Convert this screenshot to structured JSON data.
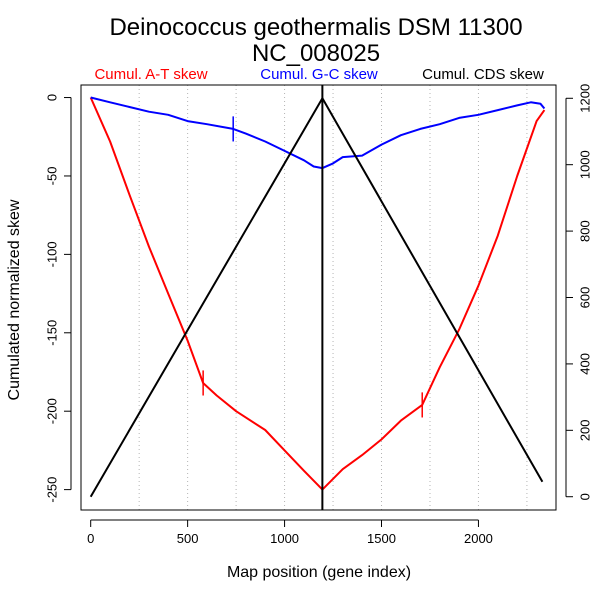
{
  "chart_data": {
    "type": "line",
    "title": "Deinococcus geothermalis DSM 11300",
    "subtitle": "NC_008025",
    "xlabel": "Map position (gene index)",
    "ylabel": "Cumulated normalized skew",
    "xlim": [
      -50,
      2400
    ],
    "ylim_left": [
      -263,
      8
    ],
    "ylim_right": [
      -40,
      1240
    ],
    "x_ticks": [
      "0",
      "500",
      "1000",
      "1500",
      "2000"
    ],
    "y_ticks_left": [
      "0",
      "-50",
      "-100",
      "-150",
      "-200",
      "-250"
    ],
    "y_ticks_right": [
      "0",
      "200",
      "400",
      "600",
      "800",
      "1000",
      "1200"
    ],
    "grid_x": [
      250,
      500,
      750,
      1000,
      1250,
      1500,
      1750,
      2000,
      2250
    ],
    "legend": [
      "Cumul. A-T skew",
      "Cumul. G-C skew",
      "Cumul. CDS skew"
    ],
    "colors": {
      "at": "#ff0000",
      "gc": "#0000ff",
      "cds": "#000000"
    },
    "series": [
      {
        "name": "Cumul. A-T skew",
        "axis": "left",
        "x": [
          0,
          100,
          200,
          300,
          400,
          500,
          580,
          650,
          750,
          900,
          1000,
          1100,
          1195,
          1300,
          1400,
          1500,
          1600,
          1710,
          1800,
          1900,
          2000,
          2100,
          2200,
          2300,
          2340
        ],
        "y": [
          0,
          -28,
          -62,
          -95,
          -125,
          -155,
          -182,
          -190,
          -200,
          -212,
          -225,
          -238,
          -250,
          -237,
          -228,
          -218,
          -206,
          -196,
          -172,
          -148,
          -120,
          -88,
          -50,
          -15,
          -8
        ]
      },
      {
        "name": "Cumul. G-C skew",
        "axis": "left",
        "x": [
          0,
          100,
          200,
          300,
          400,
          500,
          600,
          735,
          800,
          900,
          1000,
          1100,
          1150,
          1195,
          1250,
          1300,
          1400,
          1500,
          1600,
          1700,
          1800,
          1900,
          2000,
          2100,
          2200,
          2270,
          2320,
          2340
        ],
        "y": [
          0,
          -3,
          -6,
          -9,
          -11,
          -15,
          -17,
          -20,
          -23,
          -28,
          -34,
          -40,
          -44,
          -45,
          -42,
          -38,
          -37,
          -30,
          -24,
          -20,
          -17,
          -13,
          -11,
          -8,
          -5,
          -3,
          -4,
          -7
        ]
      },
      {
        "name": "Cumul. CDS skew",
        "axis": "right",
        "x": [
          0,
          1195,
          2330
        ],
        "y": [
          0,
          1200,
          45
        ]
      }
    ],
    "vertical_line_x": 1195,
    "markers": [
      {
        "series": "at",
        "x": 580,
        "y": -182,
        "half_height": 8
      },
      {
        "series": "at",
        "x": 1710,
        "y": -196,
        "half_height": 8
      },
      {
        "series": "gc",
        "x": 735,
        "y": -20,
        "half_height": 8
      }
    ]
  }
}
